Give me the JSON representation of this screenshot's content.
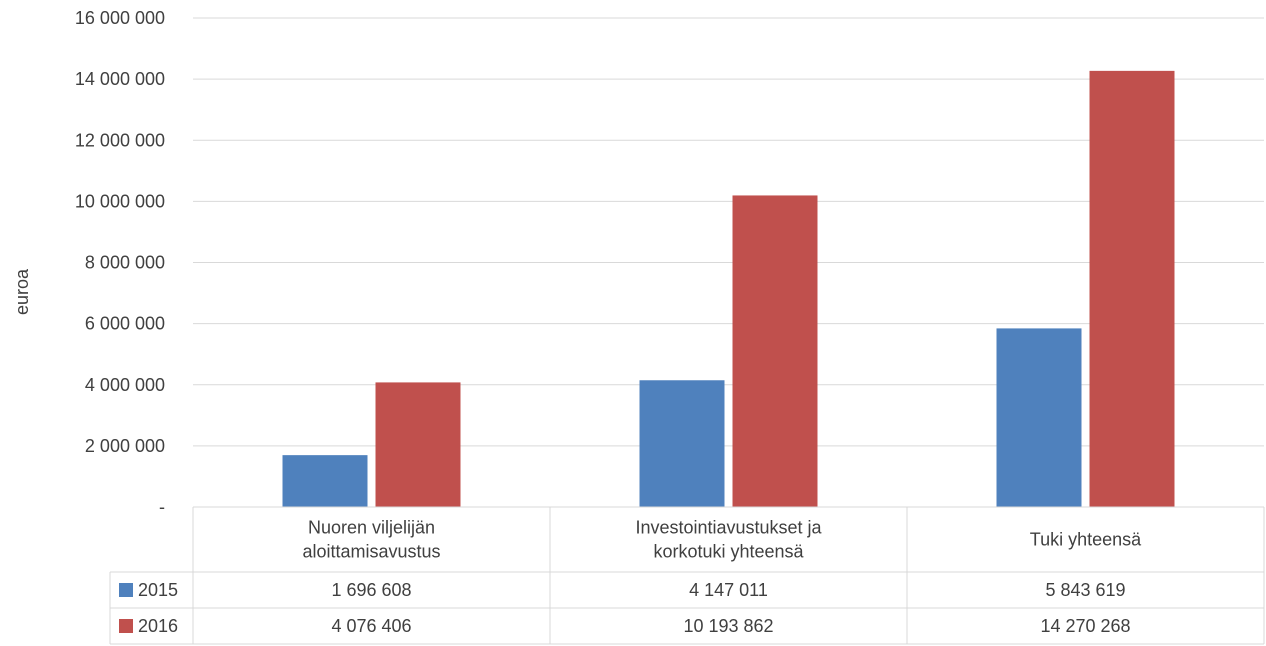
{
  "chart_data": {
    "type": "bar",
    "ylabel": "euroa",
    "ylim": [
      0,
      16000000
    ],
    "ytick_labels": [
      "-",
      "2 000 000",
      "4 000 000",
      "6 000 000",
      "8 000 000",
      "10 000 000",
      "12 000 000",
      "14 000 000",
      "16 000 000"
    ],
    "grid": true,
    "legend": "data-table",
    "categories": [
      [
        "Nuoren viljelijän",
        "aloittamisavustus"
      ],
      [
        "Investointiavustukset ja",
        "korkotuki yhteensä"
      ],
      [
        "Tuki yhteensä"
      ]
    ],
    "series": [
      {
        "name": "2015",
        "color": "#4f81bd",
        "values": [
          1696608,
          4147011,
          5843619
        ],
        "labels": [
          "1 696 608",
          "4 147 011",
          "5 843 619"
        ]
      },
      {
        "name": "2016",
        "color": "#c0504d",
        "values": [
          4076406,
          10193862,
          14270268
        ],
        "labels": [
          "4 076 406",
          "10 193 862",
          "14 270 268"
        ]
      }
    ]
  }
}
